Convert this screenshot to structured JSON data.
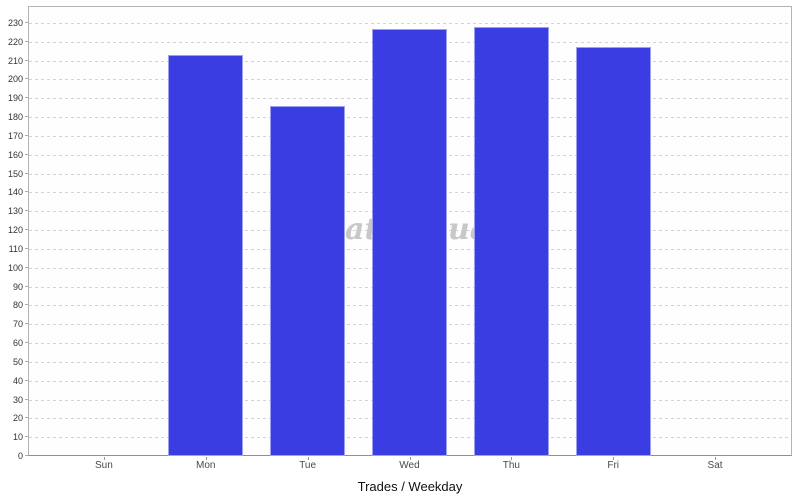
{
  "chart_data": {
    "type": "bar",
    "title": "",
    "xlabel": "Trades / Weekday",
    "ylabel": "",
    "categories": [
      "Sun",
      "Mon",
      "Tue",
      "Wed",
      "Thu",
      "Fri",
      "Sat"
    ],
    "values": [
      0,
      213,
      186,
      227,
      228,
      217,
      0
    ],
    "ylim": [
      0,
      239
    ],
    "ytick_interval": 10,
    "ytick_labels": [
      "0",
      "10",
      "20",
      "30",
      "40",
      "50",
      "60",
      "70",
      "80",
      "90",
      "100",
      "110",
      "120",
      "130",
      "140",
      "150",
      "160",
      "170",
      "180",
      "190",
      "200",
      "210",
      "220",
      "230"
    ],
    "grid": "horizontal-dashed",
    "legend_position": "none",
    "bar_color": "#3a3de2",
    "bar_border_color": "#9ba0ef",
    "gridline_color": "#d3d3d3",
    "axis_border_color": "#b3b3b3",
    "tick_label_color": "#333333"
  },
  "watermark": {
    "fragments": [
      "at",
      "ua"
    ],
    "color": "#c8c8c8"
  }
}
